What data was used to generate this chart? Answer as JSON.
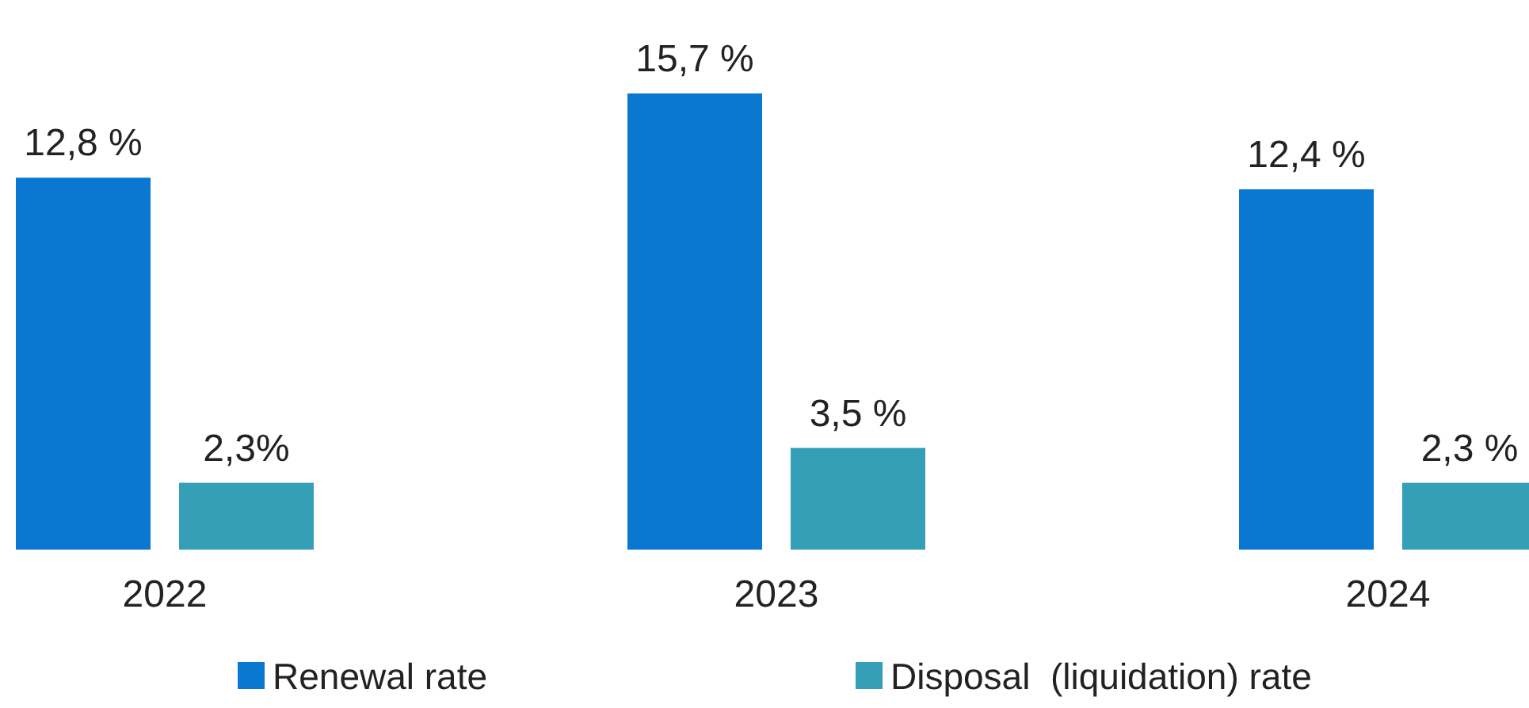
{
  "chart_data": {
    "type": "bar",
    "categories": [
      "2022",
      "2023",
      "2024"
    ],
    "series": [
      {
        "name": "Renewal rate",
        "color": "#0a77d0",
        "values": [
          12.8,
          15.7,
          12.4
        ],
        "value_labels": [
          "12,8 %",
          "15,7 %",
          "12,4 %"
        ]
      },
      {
        "name": "Disposal  (liquidation) rate",
        "color": "#369fb8",
        "values": [
          2.3,
          3.5,
          2.3
        ],
        "value_labels": [
          "2,3%",
          "3,5 %",
          "2,3 %"
        ]
      }
    ],
    "tick_labels": "x",
    "legend": "bottom",
    "grid": false
  }
}
